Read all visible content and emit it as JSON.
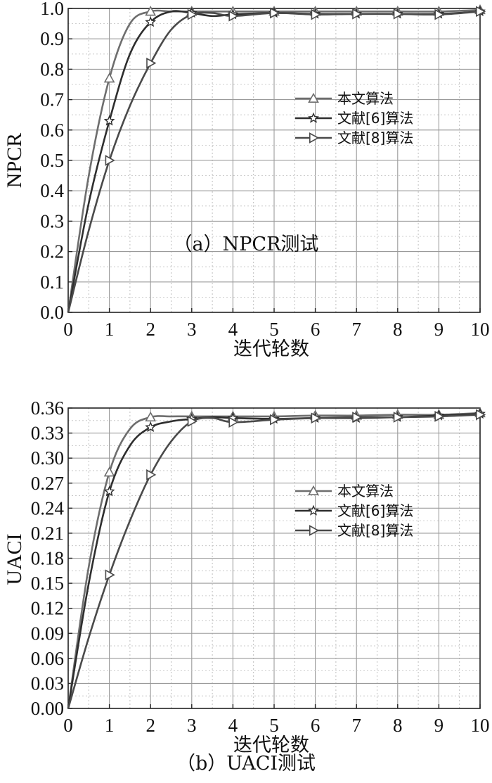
{
  "chart_data": [
    {
      "type": "line",
      "caption": "（a）NPCR测试",
      "xlabel": "迭代轮数",
      "ylabel": "NPCR",
      "xlim": [
        0,
        10
      ],
      "ylim": [
        0,
        1.0
      ],
      "xticks": [
        "0",
        "1",
        "2",
        "3",
        "4",
        "5",
        "6",
        "7",
        "8",
        "9",
        "10"
      ],
      "yticks": [
        "0.0",
        "0.1",
        "0.2",
        "0.3",
        "0.4",
        "0.5",
        "0.6",
        "0.7",
        "0.8",
        "0.9",
        "1.0"
      ],
      "grid": true,
      "legend_position": "right-center",
      "series": [
        {
          "name": "本文算法",
          "marker": "triangle-up",
          "color": "#6e6e6e",
          "x": [
            0,
            0.5,
            1,
            1.5,
            2,
            2.5,
            3,
            4,
            5,
            6,
            7,
            8,
            9,
            10
          ],
          "y": [
            0.0,
            0.45,
            0.77,
            0.95,
            0.99,
            0.99,
            0.99,
            0.99,
            0.99,
            0.99,
            0.99,
            0.99,
            0.99,
            0.995
          ]
        },
        {
          "name": "文献[6]算法",
          "marker": "star",
          "color": "#2e2e2e",
          "x": [
            0,
            0.5,
            1,
            1.5,
            2,
            2.5,
            3,
            3.5,
            4,
            5,
            6,
            7,
            8,
            9,
            10
          ],
          "y": [
            0.0,
            0.36,
            0.63,
            0.85,
            0.955,
            0.99,
            0.985,
            0.975,
            0.98,
            0.985,
            0.982,
            0.982,
            0.982,
            0.982,
            0.99
          ]
        },
        {
          "name": "文献[8]算法",
          "marker": "triangle-right",
          "color": "#4a4a4a",
          "x": [
            0,
            0.5,
            1,
            1.5,
            2,
            2.5,
            3,
            3.5,
            4,
            5,
            6,
            7,
            8,
            9,
            10
          ],
          "y": [
            0.0,
            0.27,
            0.5,
            0.68,
            0.82,
            0.93,
            0.98,
            0.985,
            0.975,
            0.985,
            0.98,
            0.982,
            0.982,
            0.98,
            0.99
          ]
        }
      ]
    },
    {
      "type": "line",
      "caption": "（b）UACI测试",
      "xlabel": "迭代轮数",
      "ylabel": "UACI",
      "xlim": [
        0,
        10
      ],
      "ylim": [
        0,
        0.36
      ],
      "xticks": [
        "0",
        "1",
        "2",
        "3",
        "4",
        "5",
        "6",
        "7",
        "8",
        "9",
        "10"
      ],
      "yticks": [
        "0.00",
        "0.03",
        "0.06",
        "0.09",
        "0.12",
        "0.15",
        "0.18",
        "0.21",
        "0.24",
        "0.27",
        "0.30",
        "0.33",
        "0.36"
      ],
      "grid": true,
      "legend_position": "right-center",
      "series": [
        {
          "name": "本文算法",
          "marker": "triangle-up",
          "color": "#6e6e6e",
          "x": [
            0,
            0.5,
            1,
            1.5,
            2,
            2.5,
            3,
            4,
            5,
            6,
            7,
            8,
            9,
            10
          ],
          "y": [
            0.0,
            0.17,
            0.283,
            0.335,
            0.349,
            0.35,
            0.35,
            0.35,
            0.35,
            0.351,
            0.351,
            0.352,
            0.352,
            0.354
          ]
        },
        {
          "name": "文献[6]算法",
          "marker": "star",
          "color": "#2e2e2e",
          "x": [
            0,
            0.5,
            1,
            1.5,
            2,
            2.5,
            3,
            3.5,
            4,
            5,
            6,
            7,
            8,
            9,
            10
          ],
          "y": [
            0.0,
            0.15,
            0.26,
            0.315,
            0.337,
            0.344,
            0.347,
            0.349,
            0.348,
            0.347,
            0.348,
            0.348,
            0.349,
            0.351,
            0.353
          ]
        },
        {
          "name": "文献[8]算法",
          "marker": "triangle-right",
          "color": "#4a4a4a",
          "x": [
            0,
            0.5,
            1,
            1.5,
            2,
            2.5,
            3,
            3.5,
            4,
            5,
            6,
            7,
            8,
            9,
            10
          ],
          "y": [
            0.0,
            0.085,
            0.16,
            0.225,
            0.28,
            0.32,
            0.344,
            0.348,
            0.343,
            0.346,
            0.348,
            0.349,
            0.349,
            0.35,
            0.352
          ]
        }
      ]
    }
  ]
}
